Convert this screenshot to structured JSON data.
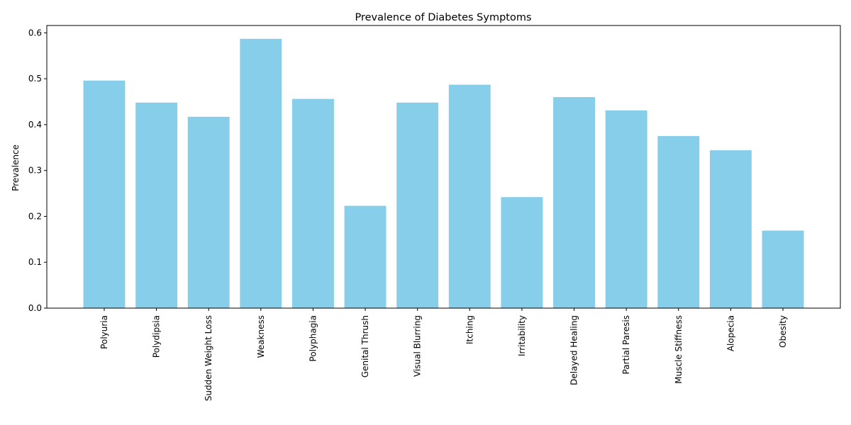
{
  "chart_data": {
    "type": "bar",
    "title": "Prevalence of Diabetes Symptoms",
    "xlabel": "",
    "ylabel": "Prevalence",
    "categories": [
      "Polyuria",
      "Polydipsia",
      "Sudden Weight Loss",
      "Weakness",
      "Polyphagia",
      "Genital Thrush",
      "Visual Blurring",
      "Itching",
      "Irritability",
      "Delayed Healing",
      "Partial Paresis",
      "Muscle Stiffness",
      "Alopecia",
      "Obesity"
    ],
    "values": [
      0.496,
      0.448,
      0.417,
      0.587,
      0.456,
      0.223,
      0.448,
      0.487,
      0.242,
      0.46,
      0.431,
      0.375,
      0.344,
      0.169
    ],
    "ylim": [
      0,
      0.616
    ],
    "yticks": [
      0.0,
      0.1,
      0.2,
      0.3,
      0.4,
      0.5,
      0.6
    ],
    "ytick_labels": [
      "0.0",
      "0.1",
      "0.2",
      "0.3",
      "0.4",
      "0.5",
      "0.6"
    ],
    "grid": false,
    "legend": "none",
    "bar_color": "#87ceeb"
  }
}
